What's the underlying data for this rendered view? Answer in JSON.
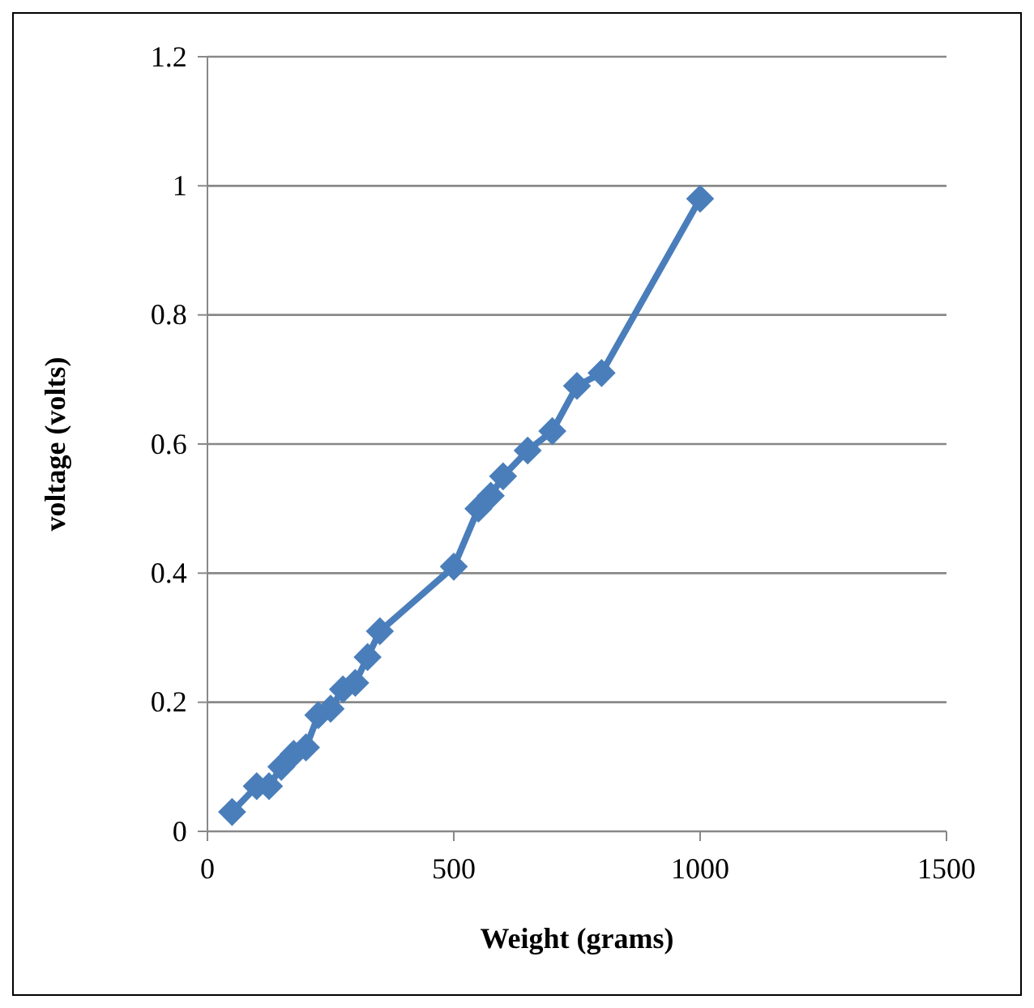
{
  "chart_data": {
    "type": "line",
    "xlabel": "Weight (grams)",
    "ylabel": "voltage (volts)",
    "x": [
      50,
      100,
      125,
      150,
      175,
      200,
      225,
      250,
      275,
      300,
      325,
      350,
      500,
      550,
      575,
      600,
      650,
      700,
      750,
      800,
      1000
    ],
    "series": [
      {
        "color": "#4a7ebb",
        "values": [
          0.03,
          0.07,
          0.07,
          0.1,
          0.12,
          0.13,
          0.18,
          0.19,
          0.22,
          0.23,
          0.27,
          0.31,
          0.41,
          0.5,
          0.52,
          0.55,
          0.59,
          0.62,
          0.69,
          0.71,
          0.98
        ]
      }
    ],
    "xlim": [
      0,
      1500
    ],
    "xticks": [
      0,
      500,
      1000,
      1500
    ],
    "ylim": [
      0,
      1.2
    ],
    "yticks": [
      0,
      0.2,
      0.4,
      0.6,
      0.8,
      1,
      1.2
    ],
    "grid": "y",
    "marker": "diamond"
  }
}
